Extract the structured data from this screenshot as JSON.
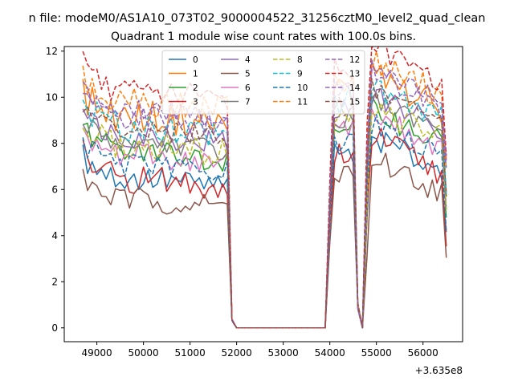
{
  "chart_data": {
    "type": "line",
    "suptitle": "n file: modeM0/AS1A10_073T02_9000004522_31256cztM0_level2_quad_clean",
    "title": "Quadrant 1 module wise count rates with 100.0s bins.",
    "xlabel": "",
    "ylabel": "",
    "x_offset_label": "+3.635e8",
    "xlim": [
      48300,
      56850
    ],
    "ylim": [
      -0.6,
      12.2
    ],
    "x_ticks": [
      49000,
      50000,
      51000,
      52000,
      53000,
      54000,
      55000,
      56000
    ],
    "y_ticks": [
      0,
      2,
      4,
      6,
      8,
      10,
      12
    ],
    "legend_position": "upper center",
    "legend_columns": 4,
    "grid": false,
    "colors": [
      "#1f77b4",
      "#ff7f0e",
      "#2ca02c",
      "#d62728",
      "#9467bd",
      "#8c564b",
      "#e377c2",
      "#7f7f7f",
      "#bcbd22",
      "#17becf"
    ],
    "series": [
      {
        "name": "0",
        "color": "#1f77b4",
        "dash": "solid",
        "level": 6.3,
        "amp": 0.35
      },
      {
        "name": "1",
        "color": "#ff7f0e",
        "dash": "solid",
        "level": 9.0,
        "amp": 0.45
      },
      {
        "name": "2",
        "color": "#2ca02c",
        "dash": "solid",
        "level": 7.5,
        "amp": 0.35
      },
      {
        "name": "3",
        "color": "#d62728",
        "dash": "solid",
        "level": 6.3,
        "amp": 0.4
      },
      {
        "name": "4",
        "color": "#9467bd",
        "dash": "solid",
        "level": 8.2,
        "amp": 0.35
      },
      {
        "name": "5",
        "color": "#8c564b",
        "dash": "solid",
        "level": 5.4,
        "amp": 0.35
      },
      {
        "name": "6",
        "color": "#e377c2",
        "dash": "solid",
        "level": 7.3,
        "amp": 0.35
      },
      {
        "name": "7",
        "color": "#7f7f7f",
        "dash": "solid",
        "level": 7.9,
        "amp": 0.3
      },
      {
        "name": "8",
        "color": "#bcbd22",
        "dash": "dashed",
        "level": 7.7,
        "amp": 0.4
      },
      {
        "name": "9",
        "color": "#17becf",
        "dash": "dashed",
        "level": 8.6,
        "amp": 0.4
      },
      {
        "name": "10",
        "color": "#1f77b4",
        "dash": "dashed",
        "level": 6.9,
        "amp": 0.3
      },
      {
        "name": "11",
        "color": "#ff7f0e",
        "dash": "dashed",
        "level": 9.6,
        "amp": 0.4
      },
      {
        "name": "12",
        "color": "#9467bd",
        "dash": "dashed",
        "level": 9.0,
        "amp": 0.35
      },
      {
        "name": "13",
        "color": "#d62728",
        "dash": "dashed",
        "level": 10.1,
        "amp": 0.35
      },
      {
        "name": "14",
        "color": "#9467bd",
        "dash": "dashed",
        "level": 9.3,
        "amp": 0.3
      },
      {
        "name": "15",
        "color": "#8c564b",
        "dash": "dashed",
        "level": 8.4,
        "amp": 0.3
      }
    ]
  }
}
